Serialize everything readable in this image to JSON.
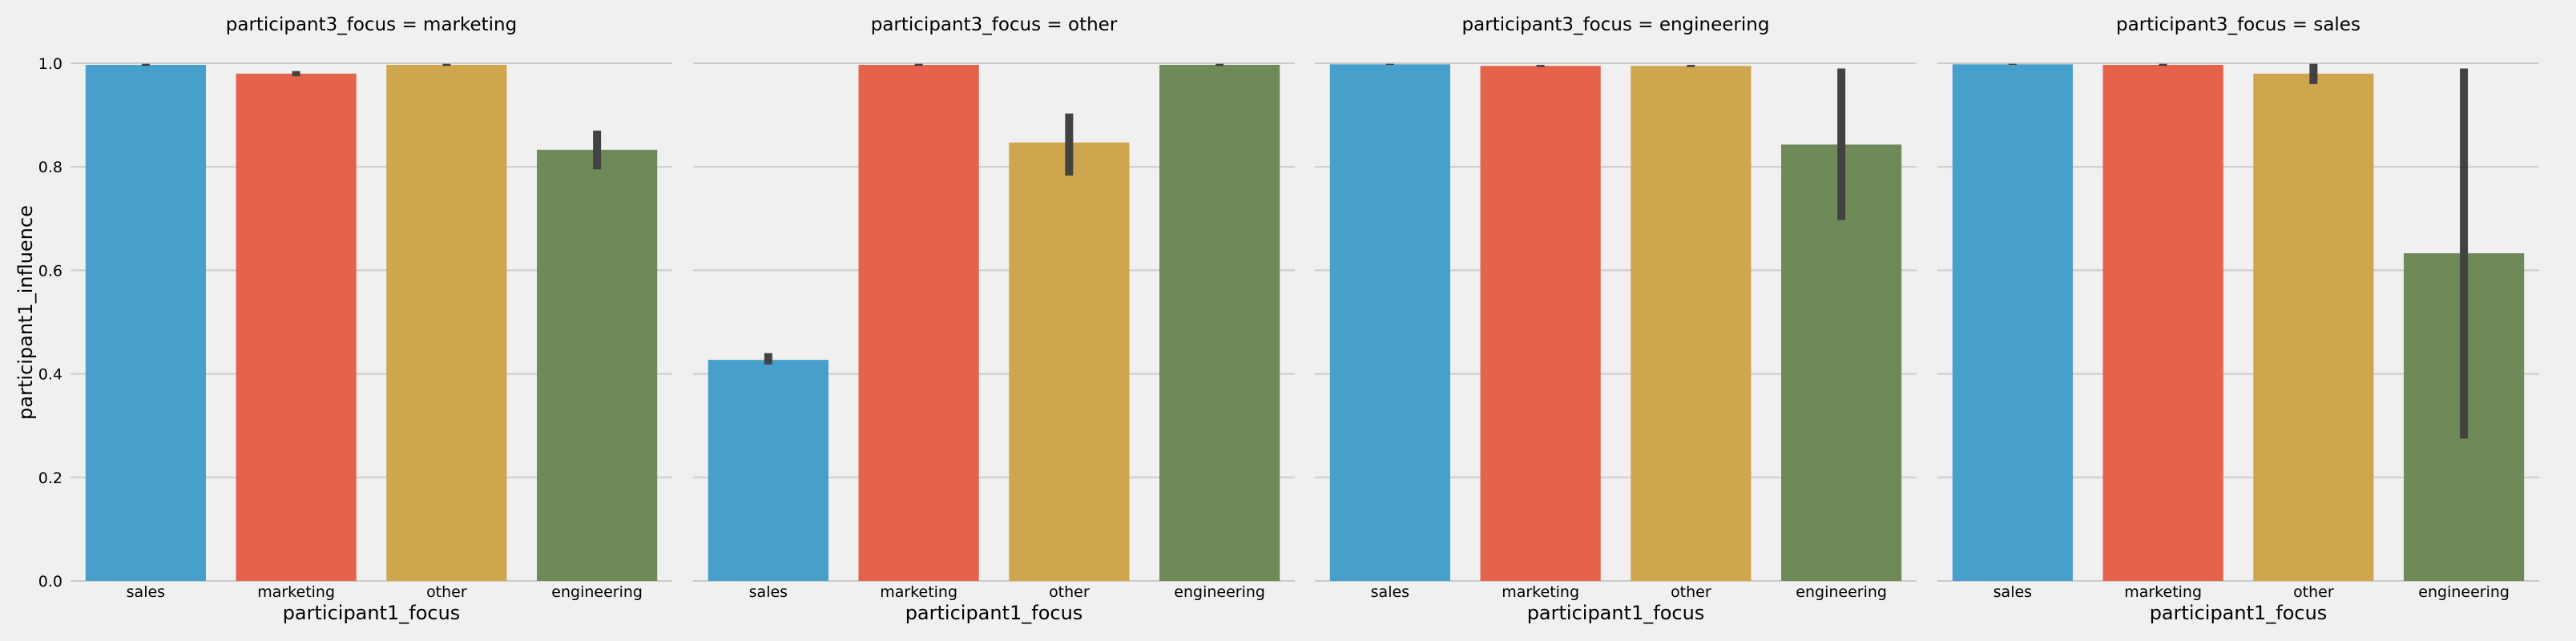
{
  "colors": {
    "background": "#f0f0f0",
    "grid": "#cbcbcb",
    "errorbar": "#424242",
    "text": "#000000",
    "bars": [
      "#479fcb",
      "#e4634a",
      "#cfa64d",
      "#6f8a58"
    ]
  },
  "chart_data": {
    "type": "bar",
    "facet_title_prefix": "participant3_focus = ",
    "xlabel": "participant1_focus",
    "ylabel": "participant1_influence",
    "ylim": [
      0,
      1.0
    ],
    "yticks": [
      "0.0",
      "0.2",
      "0.4",
      "0.6",
      "0.8",
      "1.0"
    ],
    "grid": "horizontal",
    "categories": [
      "sales",
      "marketing",
      "other",
      "engineering"
    ],
    "panels": [
      {
        "facet": "marketing",
        "title": "participant3_focus = marketing",
        "values": [
          0.997,
          0.98,
          0.997,
          0.833
        ],
        "errors": [
          [
            0.995,
            0.999
          ],
          [
            0.975,
            0.985
          ],
          [
            0.995,
            0.999
          ],
          [
            0.795,
            0.87
          ]
        ]
      },
      {
        "facet": "other",
        "title": "participant3_focus = other",
        "values": [
          0.427,
          0.997,
          0.847,
          0.997
        ],
        "errors": [
          [
            0.418,
            0.44
          ],
          [
            0.995,
            0.999
          ],
          [
            0.783,
            0.903
          ],
          [
            0.995,
            0.999
          ]
        ]
      },
      {
        "facet": "engineering",
        "title": "participant3_focus = engineering",
        "values": [
          0.998,
          0.995,
          0.995,
          0.843
        ],
        "errors": [
          [
            0.997,
            0.999
          ],
          [
            0.993,
            0.997
          ],
          [
            0.993,
            0.997
          ],
          [
            0.697,
            0.99
          ]
        ]
      },
      {
        "facet": "sales",
        "title": "participant3_focus = sales",
        "values": [
          0.998,
          0.997,
          0.98,
          0.633
        ],
        "errors": [
          [
            0.997,
            0.999
          ],
          [
            0.995,
            0.999
          ],
          [
            0.96,
            0.999
          ],
          [
            0.275,
            0.99
          ]
        ]
      }
    ]
  }
}
